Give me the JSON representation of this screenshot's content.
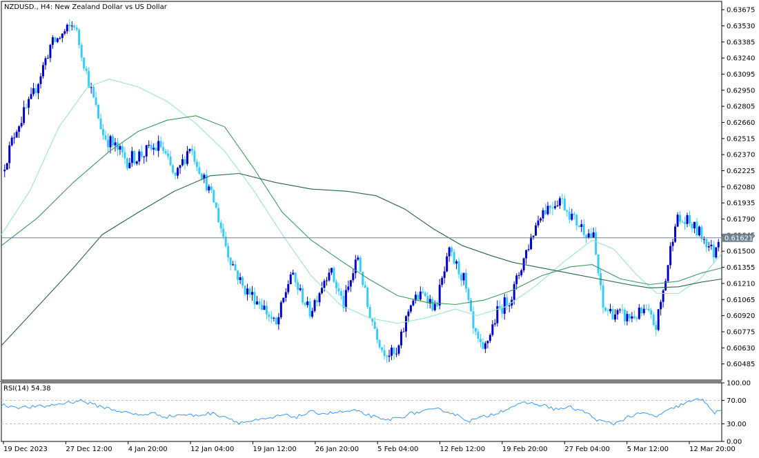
{
  "symbol_label": "NZDUSD., H4:  New Zealand Dollar vs US Dollar",
  "rsi_label": "RSI(14) 54.38",
  "current_price_label": "0.61621",
  "colors": {
    "bull": "#0000cc",
    "bear": "#33ccff",
    "ma_fast": "#99e6cc",
    "ma_mid": "#3a9a5a",
    "ma_slow": "#226644",
    "rsi": "#3399ff",
    "grid": "#c0c0c0",
    "price_line": "#708090",
    "axis": "#000000"
  },
  "chart_data": [
    {
      "type": "candlestick",
      "ylim": [
        0.6034,
        0.6375
      ],
      "y_ticks": [
        "0.63675",
        "0.63530",
        "0.63385",
        "0.63240",
        "0.63095",
        "0.62950",
        "0.62805",
        "0.62660",
        "0.62515",
        "0.62370",
        "0.62225",
        "0.62080",
        "0.61935",
        "0.61790",
        "0.61645",
        "0.61500",
        "0.61355",
        "0.61210",
        "0.61065",
        "0.60920",
        "0.60775",
        "0.60630",
        "0.60485"
      ],
      "x_ticks": [
        "19 Dec 2023",
        "27 Dec 12:00",
        "4 Jan 20:00",
        "12 Jan 04:00",
        "19 Jan 12:00",
        "26 Jan 20:00",
        "5 Feb 04:00",
        "12 Feb 12:00",
        "19 Feb 20:00",
        "27 Feb 04:00",
        "5 Mar 12:00",
        "12 Mar 20:00"
      ],
      "current_price": 0.61621,
      "segments": [
        {
          "bars": 6,
          "start": 0.6222,
          "end": 0.6262,
          "vol": 0.0008
        },
        {
          "bars": 6,
          "start": 0.6262,
          "end": 0.6285,
          "vol": 0.0009
        },
        {
          "bars": 8,
          "start": 0.6285,
          "end": 0.6335,
          "vol": 0.0008
        },
        {
          "bars": 10,
          "start": 0.6335,
          "end": 0.6355,
          "vol": 0.0008
        },
        {
          "bars": 6,
          "start": 0.6355,
          "end": 0.6302,
          "vol": 0.0007
        },
        {
          "bars": 6,
          "start": 0.6302,
          "end": 0.6255,
          "vol": 0.0008
        },
        {
          "bars": 10,
          "start": 0.6255,
          "end": 0.6232,
          "vol": 0.0009
        },
        {
          "bars": 14,
          "start": 0.6232,
          "end": 0.6245,
          "vol": 0.0009
        },
        {
          "bars": 6,
          "start": 0.6245,
          "end": 0.6215,
          "vol": 0.0008
        },
        {
          "bars": 6,
          "start": 0.6215,
          "end": 0.6245,
          "vol": 0.0008
        },
        {
          "bars": 4,
          "start": 0.6245,
          "end": 0.6225,
          "vol": 0.0008
        },
        {
          "bars": 6,
          "start": 0.6225,
          "end": 0.6195,
          "vol": 0.0007
        },
        {
          "bars": 6,
          "start": 0.6195,
          "end": 0.6148,
          "vol": 0.0008
        },
        {
          "bars": 6,
          "start": 0.6148,
          "end": 0.6118,
          "vol": 0.0008
        },
        {
          "bars": 8,
          "start": 0.6118,
          "end": 0.6102,
          "vol": 0.0008
        },
        {
          "bars": 6,
          "start": 0.6102,
          "end": 0.6082,
          "vol": 0.0008
        },
        {
          "bars": 6,
          "start": 0.6082,
          "end": 0.613,
          "vol": 0.0008
        },
        {
          "bars": 8,
          "start": 0.613,
          "end": 0.6095,
          "vol": 0.0007
        },
        {
          "bars": 8,
          "start": 0.6095,
          "end": 0.6135,
          "vol": 0.0008
        },
        {
          "bars": 6,
          "start": 0.6135,
          "end": 0.6102,
          "vol": 0.0008
        },
        {
          "bars": 6,
          "start": 0.6102,
          "end": 0.6145,
          "vol": 0.0008
        },
        {
          "bars": 4,
          "start": 0.6145,
          "end": 0.61,
          "vol": 0.0008
        },
        {
          "bars": 6,
          "start": 0.61,
          "end": 0.6062,
          "vol": 0.0007
        },
        {
          "bars": 6,
          "start": 0.6062,
          "end": 0.6055,
          "vol": 0.0008
        },
        {
          "bars": 6,
          "start": 0.6055,
          "end": 0.6105,
          "vol": 0.0008
        },
        {
          "bars": 6,
          "start": 0.6105,
          "end": 0.6112,
          "vol": 0.0007
        },
        {
          "bars": 4,
          "start": 0.6112,
          "end": 0.6098,
          "vol": 0.0007
        },
        {
          "bars": 6,
          "start": 0.6098,
          "end": 0.6148,
          "vol": 0.0008
        },
        {
          "bars": 6,
          "start": 0.6148,
          "end": 0.6125,
          "vol": 0.0008
        },
        {
          "bars": 4,
          "start": 0.6125,
          "end": 0.6078,
          "vol": 0.0008
        },
        {
          "bars": 4,
          "start": 0.6078,
          "end": 0.6058,
          "vol": 0.0007
        },
        {
          "bars": 6,
          "start": 0.6058,
          "end": 0.6095,
          "vol": 0.0008
        },
        {
          "bars": 6,
          "start": 0.6095,
          "end": 0.611,
          "vol": 0.0008
        },
        {
          "bars": 6,
          "start": 0.611,
          "end": 0.615,
          "vol": 0.0008
        },
        {
          "bars": 6,
          "start": 0.615,
          "end": 0.6185,
          "vol": 0.0008
        },
        {
          "bars": 8,
          "start": 0.6185,
          "end": 0.6198,
          "vol": 0.0009
        },
        {
          "bars": 6,
          "start": 0.6198,
          "end": 0.6178,
          "vol": 0.0008
        },
        {
          "bars": 8,
          "start": 0.6178,
          "end": 0.6162,
          "vol": 0.0008
        },
        {
          "bars": 4,
          "start": 0.6162,
          "end": 0.6098,
          "vol": 0.0008
        },
        {
          "bars": 10,
          "start": 0.6098,
          "end": 0.609,
          "vol": 0.0008
        },
        {
          "bars": 8,
          "start": 0.609,
          "end": 0.6095,
          "vol": 0.0008
        },
        {
          "bars": 4,
          "start": 0.6095,
          "end": 0.6082,
          "vol": 0.0008
        },
        {
          "bars": 4,
          "start": 0.6082,
          "end": 0.6125,
          "vol": 0.0008
        },
        {
          "bars": 4,
          "start": 0.6125,
          "end": 0.6178,
          "vol": 0.0008
        },
        {
          "bars": 6,
          "start": 0.6178,
          "end": 0.6175,
          "vol": 0.0009
        },
        {
          "bars": 6,
          "start": 0.6175,
          "end": 0.6162,
          "vol": 0.0008
        },
        {
          "bars": 4,
          "start": 0.6162,
          "end": 0.6148,
          "vol": 0.0008
        },
        {
          "bars": 2,
          "start": 0.6148,
          "end": 0.61621,
          "vol": 0.0006
        }
      ],
      "moving_averages": [
        {
          "style": "ma_fast",
          "points": [
            [
              0.0,
              0.6165
            ],
            [
              0.04,
              0.6205
            ],
            [
              0.08,
              0.6262
            ],
            [
              0.12,
              0.6298
            ],
            [
              0.15,
              0.6305
            ],
            [
              0.19,
              0.6298
            ],
            [
              0.23,
              0.6285
            ],
            [
              0.27,
              0.6265
            ],
            [
              0.31,
              0.624
            ],
            [
              0.35,
              0.6205
            ],
            [
              0.39,
              0.6165
            ],
            [
              0.43,
              0.6128
            ],
            [
              0.47,
              0.6102
            ],
            [
              0.51,
              0.609
            ],
            [
              0.55,
              0.6085
            ],
            [
              0.59,
              0.609
            ],
            [
              0.63,
              0.6098
            ],
            [
              0.66,
              0.6092
            ],
            [
              0.7,
              0.61
            ],
            [
              0.74,
              0.6118
            ],
            [
              0.78,
              0.614
            ],
            [
              0.82,
              0.616
            ],
            [
              0.85,
              0.6152
            ],
            [
              0.88,
              0.613
            ],
            [
              0.91,
              0.6112
            ],
            [
              0.94,
              0.6112
            ],
            [
              0.97,
              0.6125
            ],
            [
              1.0,
              0.6148
            ]
          ]
        },
        {
          "style": "ma_mid",
          "points": [
            [
              0.0,
              0.6155
            ],
            [
              0.05,
              0.618
            ],
            [
              0.1,
              0.6212
            ],
            [
              0.15,
              0.624
            ],
            [
              0.19,
              0.6258
            ],
            [
              0.23,
              0.6268
            ],
            [
              0.27,
              0.6272
            ],
            [
              0.31,
              0.6262
            ],
            [
              0.35,
              0.6225
            ],
            [
              0.39,
              0.6185
            ],
            [
              0.43,
              0.616
            ],
            [
              0.47,
              0.6142
            ],
            [
              0.51,
              0.6125
            ],
            [
              0.55,
              0.611
            ],
            [
              0.59,
              0.6104
            ],
            [
              0.63,
              0.6102
            ],
            [
              0.67,
              0.6106
            ],
            [
              0.71,
              0.6115
            ],
            [
              0.75,
              0.6128
            ],
            [
              0.79,
              0.6136
            ],
            [
              0.82,
              0.6138
            ],
            [
              0.86,
              0.6125
            ],
            [
              0.9,
              0.612
            ],
            [
              0.94,
              0.6123
            ],
            [
              0.97,
              0.613
            ],
            [
              1.0,
              0.6135
            ]
          ]
        },
        {
          "style": "ma_slow",
          "points": [
            [
              0.0,
              0.6065
            ],
            [
              0.05,
              0.61
            ],
            [
              0.1,
              0.6135
            ],
            [
              0.14,
              0.6165
            ],
            [
              0.19,
              0.6185
            ],
            [
              0.24,
              0.6204
            ],
            [
              0.29,
              0.6218
            ],
            [
              0.33,
              0.622
            ],
            [
              0.38,
              0.6212
            ],
            [
              0.43,
              0.6206
            ],
            [
              0.48,
              0.6204
            ],
            [
              0.52,
              0.62
            ],
            [
              0.56,
              0.6188
            ],
            [
              0.6,
              0.617
            ],
            [
              0.64,
              0.6155
            ],
            [
              0.68,
              0.6146
            ],
            [
              0.71,
              0.614
            ],
            [
              0.75,
              0.6135
            ],
            [
              0.79,
              0.613
            ],
            [
              0.83,
              0.6125
            ],
            [
              0.87,
              0.612
            ],
            [
              0.9,
              0.6117
            ],
            [
              0.94,
              0.6118
            ],
            [
              0.97,
              0.6122
            ],
            [
              1.0,
              0.6125
            ]
          ]
        }
      ]
    },
    {
      "type": "line",
      "title": "RSI(14) 54.38",
      "ylim": [
        0,
        100
      ],
      "y_ticks": [
        "100.00",
        "70.00",
        "30.00",
        "0.00"
      ],
      "levels": [
        70,
        30
      ],
      "points": [
        [
          0.0,
          62
        ],
        [
          0.03,
          58
        ],
        [
          0.06,
          60
        ],
        [
          0.09,
          66
        ],
        [
          0.11,
          70
        ],
        [
          0.13,
          62
        ],
        [
          0.15,
          56
        ],
        [
          0.17,
          50
        ],
        [
          0.19,
          45
        ],
        [
          0.21,
          48
        ],
        [
          0.23,
          42
        ],
        [
          0.25,
          46
        ],
        [
          0.27,
          44
        ],
        [
          0.29,
          48
        ],
        [
          0.31,
          43
        ],
        [
          0.33,
          32
        ],
        [
          0.35,
          35
        ],
        [
          0.37,
          38
        ],
        [
          0.39,
          45
        ],
        [
          0.41,
          42
        ],
        [
          0.43,
          50
        ],
        [
          0.45,
          48
        ],
        [
          0.47,
          50
        ],
        [
          0.49,
          52
        ],
        [
          0.51,
          45
        ],
        [
          0.53,
          36
        ],
        [
          0.55,
          40
        ],
        [
          0.57,
          48
        ],
        [
          0.59,
          52
        ],
        [
          0.61,
          55
        ],
        [
          0.63,
          46
        ],
        [
          0.65,
          35
        ],
        [
          0.67,
          42
        ],
        [
          0.69,
          50
        ],
        [
          0.71,
          60
        ],
        [
          0.73,
          66
        ],
        [
          0.75,
          62
        ],
        [
          0.77,
          55
        ],
        [
          0.79,
          58
        ],
        [
          0.81,
          50
        ],
        [
          0.83,
          35
        ],
        [
          0.85,
          30
        ],
        [
          0.87,
          42
        ],
        [
          0.89,
          48
        ],
        [
          0.91,
          43
        ],
        [
          0.93,
          55
        ],
        [
          0.95,
          66
        ],
        [
          0.97,
          72
        ],
        [
          0.98,
          65
        ],
        [
          0.99,
          48
        ],
        [
          1.0,
          54
        ]
      ]
    }
  ]
}
